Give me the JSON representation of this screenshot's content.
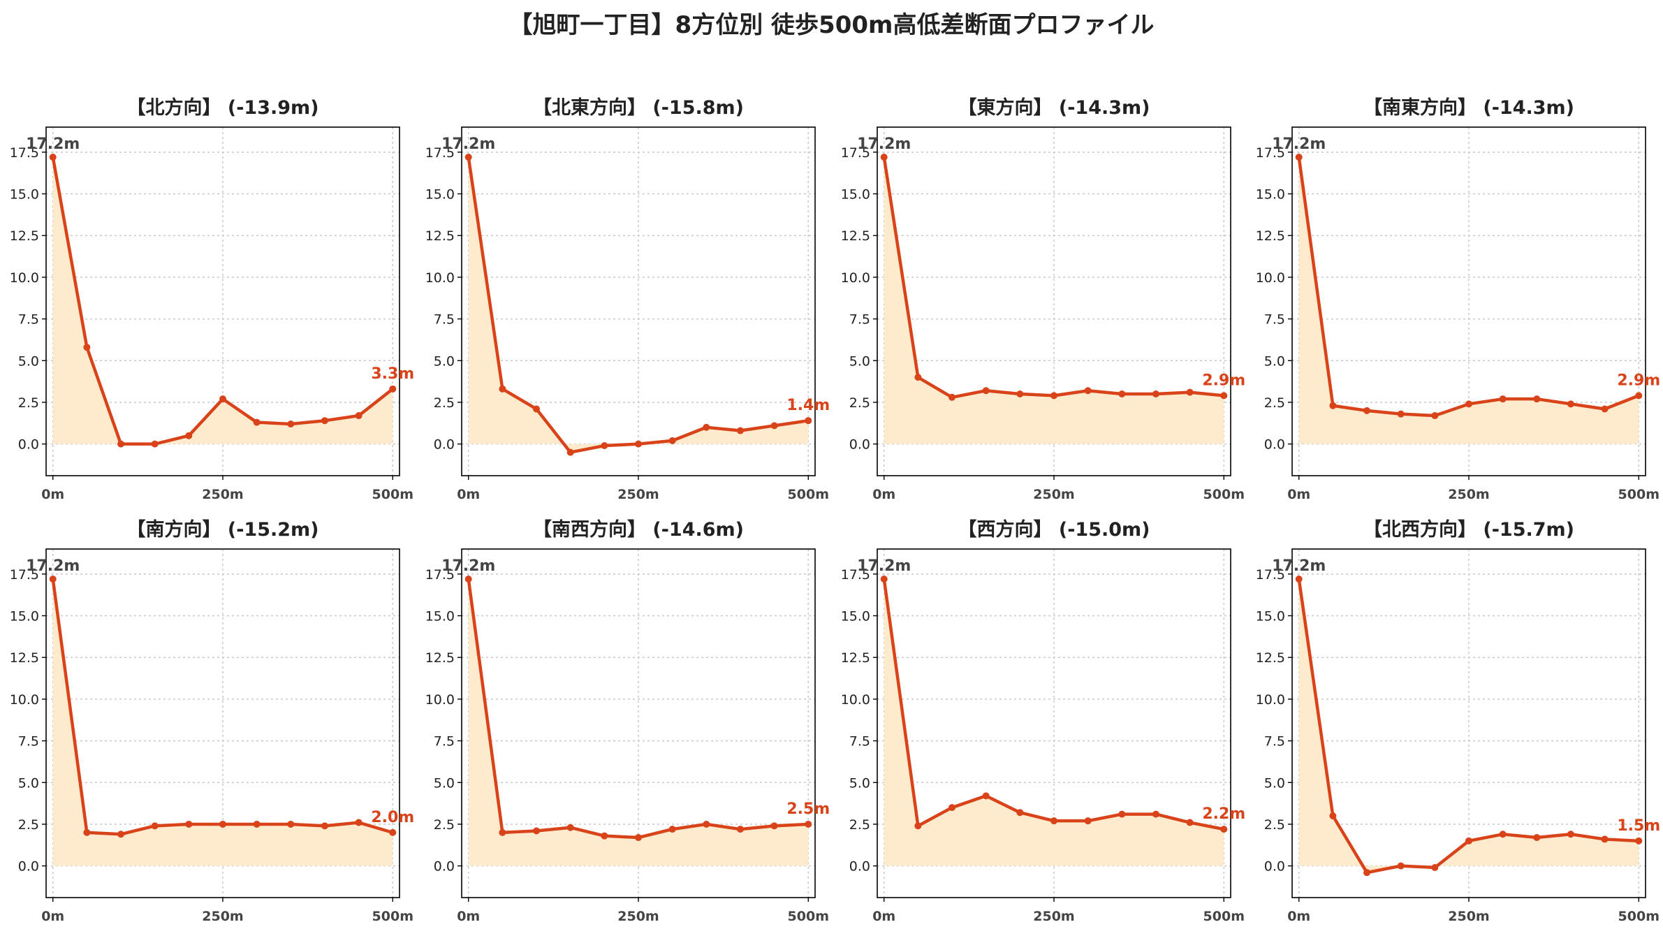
{
  "title": "【旭町一丁目】8方位別 徒歩500m高低差断面プロファイル",
  "colors": {
    "line": "#d9431a",
    "fill": "#feebcd",
    "grid": "#c8c8c8",
    "start_label": "#444444"
  },
  "chart_data": [
    {
      "type": "area",
      "title": "【北方向】 (-13.9m)",
      "x": [
        0,
        50,
        100,
        150,
        200,
        250,
        300,
        350,
        400,
        450,
        500
      ],
      "y": [
        17.2,
        5.8,
        0.0,
        0.0,
        0.5,
        2.7,
        1.3,
        1.2,
        1.4,
        1.7,
        3.3
      ],
      "start_label": "17.2m",
      "end_label": "3.3m",
      "xticks": [
        "0m",
        "250m",
        "500m"
      ],
      "yticks": [
        "0.0",
        "2.5",
        "5.0",
        "7.5",
        "10.0",
        "12.5",
        "15.0",
        "17.5"
      ],
      "xlim": [
        -10,
        510
      ],
      "ylim": [
        -1.9,
        19.0
      ],
      "grid": true
    },
    {
      "type": "area",
      "title": "【北東方向】 (-15.8m)",
      "x": [
        0,
        50,
        100,
        150,
        200,
        250,
        300,
        350,
        400,
        450,
        500
      ],
      "y": [
        17.2,
        3.3,
        2.1,
        -0.5,
        -0.1,
        0.0,
        0.2,
        1.0,
        0.8,
        1.1,
        1.4
      ],
      "start_label": "17.2m",
      "end_label": "1.4m",
      "xticks": [
        "0m",
        "250m",
        "500m"
      ],
      "yticks": [
        "0.0",
        "2.5",
        "5.0",
        "7.5",
        "10.0",
        "12.5",
        "15.0",
        "17.5"
      ],
      "xlim": [
        -10,
        510
      ],
      "ylim": [
        -1.9,
        19.0
      ],
      "grid": true
    },
    {
      "type": "area",
      "title": "【東方向】 (-14.3m)",
      "x": [
        0,
        50,
        100,
        150,
        200,
        250,
        300,
        350,
        400,
        450,
        500
      ],
      "y": [
        17.2,
        4.0,
        2.8,
        3.2,
        3.0,
        2.9,
        3.2,
        3.0,
        3.0,
        3.1,
        2.9
      ],
      "start_label": "17.2m",
      "end_label": "2.9m",
      "xticks": [
        "0m",
        "250m",
        "500m"
      ],
      "yticks": [
        "0.0",
        "2.5",
        "5.0",
        "7.5",
        "10.0",
        "12.5",
        "15.0",
        "17.5"
      ],
      "xlim": [
        -10,
        510
      ],
      "ylim": [
        -1.9,
        19.0
      ],
      "grid": true
    },
    {
      "type": "area",
      "title": "【南東方向】 (-14.3m)",
      "x": [
        0,
        50,
        100,
        150,
        200,
        250,
        300,
        350,
        400,
        450,
        500
      ],
      "y": [
        17.2,
        2.3,
        2.0,
        1.8,
        1.7,
        2.4,
        2.7,
        2.7,
        2.4,
        2.1,
        2.9
      ],
      "start_label": "17.2m",
      "end_label": "2.9m",
      "xticks": [
        "0m",
        "250m",
        "500m"
      ],
      "yticks": [
        "0.0",
        "2.5",
        "5.0",
        "7.5",
        "10.0",
        "12.5",
        "15.0",
        "17.5"
      ],
      "xlim": [
        -10,
        510
      ],
      "ylim": [
        -1.9,
        19.0
      ],
      "grid": true
    },
    {
      "type": "area",
      "title": "【南方向】 (-15.2m)",
      "x": [
        0,
        50,
        100,
        150,
        200,
        250,
        300,
        350,
        400,
        450,
        500
      ],
      "y": [
        17.2,
        2.0,
        1.9,
        2.4,
        2.5,
        2.5,
        2.5,
        2.5,
        2.4,
        2.6,
        2.0
      ],
      "start_label": "17.2m",
      "end_label": "2.0m",
      "xticks": [
        "0m",
        "250m",
        "500m"
      ],
      "yticks": [
        "0.0",
        "2.5",
        "5.0",
        "7.5",
        "10.0",
        "12.5",
        "15.0",
        "17.5"
      ],
      "xlim": [
        -10,
        510
      ],
      "ylim": [
        -1.9,
        19.0
      ],
      "grid": true
    },
    {
      "type": "area",
      "title": "【南西方向】 (-14.6m)",
      "x": [
        0,
        50,
        100,
        150,
        200,
        250,
        300,
        350,
        400,
        450,
        500
      ],
      "y": [
        17.2,
        2.0,
        2.1,
        2.3,
        1.8,
        1.7,
        2.2,
        2.5,
        2.2,
        2.4,
        2.5
      ],
      "start_label": "17.2m",
      "end_label": "2.5m",
      "xticks": [
        "0m",
        "250m",
        "500m"
      ],
      "yticks": [
        "0.0",
        "2.5",
        "5.0",
        "7.5",
        "10.0",
        "12.5",
        "15.0",
        "17.5"
      ],
      "xlim": [
        -10,
        510
      ],
      "ylim": [
        -1.9,
        19.0
      ],
      "grid": true
    },
    {
      "type": "area",
      "title": "【西方向】 (-15.0m)",
      "x": [
        0,
        50,
        100,
        150,
        200,
        250,
        300,
        350,
        400,
        450,
        500
      ],
      "y": [
        17.2,
        2.4,
        3.5,
        4.2,
        3.2,
        2.7,
        2.7,
        3.1,
        3.1,
        2.6,
        2.2
      ],
      "start_label": "17.2m",
      "end_label": "2.2m",
      "xticks": [
        "0m",
        "250m",
        "500m"
      ],
      "yticks": [
        "0.0",
        "2.5",
        "5.0",
        "7.5",
        "10.0",
        "12.5",
        "15.0",
        "17.5"
      ],
      "xlim": [
        -10,
        510
      ],
      "ylim": [
        -1.9,
        19.0
      ],
      "grid": true
    },
    {
      "type": "area",
      "title": "【北西方向】 (-15.7m)",
      "x": [
        0,
        50,
        100,
        150,
        200,
        250,
        300,
        350,
        400,
        450,
        500
      ],
      "y": [
        17.2,
        3.0,
        -0.4,
        0.0,
        -0.1,
        1.5,
        1.9,
        1.7,
        1.9,
        1.6,
        1.5
      ],
      "start_label": "17.2m",
      "end_label": "1.5m",
      "xticks": [
        "0m",
        "250m",
        "500m"
      ],
      "yticks": [
        "0.0",
        "2.5",
        "5.0",
        "7.5",
        "10.0",
        "12.5",
        "15.0",
        "17.5"
      ],
      "xlim": [
        -10,
        510
      ],
      "ylim": [
        -1.9,
        19.0
      ],
      "grid": true
    }
  ]
}
